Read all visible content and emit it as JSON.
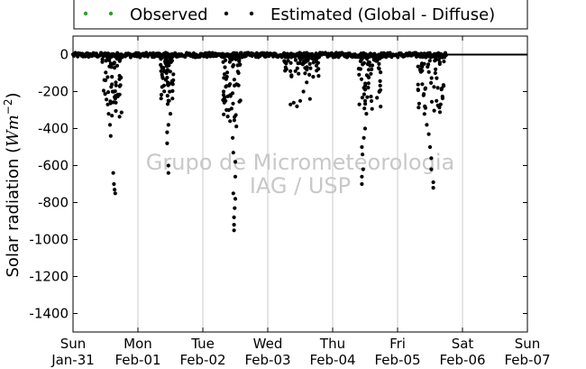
{
  "chart_data": {
    "type": "scatter",
    "ylabel_main": "Solar radiation (",
    "ylabel_italic": "Wm",
    "ylabel_exp": "−2",
    "ylabel_close": ")",
    "ylim": [
      -1500,
      100
    ],
    "yticks": [
      0,
      -200,
      -400,
      -600,
      -800,
      -1000,
      -1200,
      -1400
    ],
    "xlim": [
      0,
      7
    ],
    "xticks": [
      {
        "x": 0,
        "day": "Sun",
        "date": "Jan-31"
      },
      {
        "x": 1,
        "day": "Mon",
        "date": "Feb-01"
      },
      {
        "x": 2,
        "day": "Tue",
        "date": "Feb-02"
      },
      {
        "x": 3,
        "day": "Wed",
        "date": "Feb-03"
      },
      {
        "x": 4,
        "day": "Thu",
        "date": "Feb-04"
      },
      {
        "x": 5,
        "day": "Fri",
        "date": "Feb-05"
      },
      {
        "x": 6,
        "day": "Sat",
        "date": "Feb-06"
      },
      {
        "x": 7,
        "day": "Sun",
        "date": "Feb-07"
      }
    ],
    "grid_x": true,
    "legend_position": "top",
    "watermark": [
      "Grupo de Micrometeorologia",
      "IAG / USP"
    ],
    "series": [
      {
        "name": "Observed",
        "color": "#2ca02c",
        "marker": "dot",
        "points": []
      },
      {
        "name": "Estimated (Global - Diffuse)",
        "color": "#000000",
        "marker": "dot",
        "baseline": {
          "x_start": 0.0,
          "x_end": 5.75,
          "y_range": [
            -15,
            10
          ]
        },
        "day_events": [
          {
            "x_start": 0.45,
            "x_end": 0.75,
            "min": -750,
            "extra": [
              [
                0.62,
                -640
              ],
              [
                0.63,
                -700
              ],
              [
                0.64,
                -730
              ],
              [
                0.65,
                -750
              ],
              [
                0.58,
                -440
              ],
              [
                0.57,
                -380
              ],
              [
                0.61,
                -200
              ],
              [
                0.66,
                -260
              ],
              [
                0.66,
                -150
              ],
              [
                0.6,
                -120
              ],
              [
                0.68,
                -60
              ]
            ]
          },
          {
            "x_start": 1.35,
            "x_end": 1.55,
            "min": -640,
            "extra": [
              [
                1.47,
                -640
              ],
              [
                1.47,
                -600
              ],
              [
                1.45,
                -480
              ],
              [
                1.45,
                -420
              ],
              [
                1.47,
                -380
              ],
              [
                1.46,
                -150
              ],
              [
                1.44,
                -100
              ],
              [
                1.48,
                -250
              ],
              [
                1.5,
                -320
              ],
              [
                1.43,
                -50
              ]
            ]
          },
          {
            "x_start": 2.3,
            "x_end": 2.58,
            "min": -950,
            "extra": [
              [
                2.48,
                -950
              ],
              [
                2.48,
                -920
              ],
              [
                2.48,
                -880
              ],
              [
                2.49,
                -830
              ],
              [
                2.5,
                -780
              ],
              [
                2.47,
                -750
              ],
              [
                2.5,
                -660
              ],
              [
                2.5,
                -580
              ],
              [
                2.47,
                -530
              ],
              [
                2.46,
                -450
              ],
              [
                2.42,
                -360
              ],
              [
                2.4,
                -300
              ],
              [
                2.35,
                -250
              ],
              [
                2.32,
                -200
              ],
              [
                2.52,
                -160
              ],
              [
                2.55,
                -100
              ]
            ]
          },
          {
            "x_start": 3.25,
            "x_end": 3.8,
            "min": -280,
            "extra": [
              [
                3.35,
                -270
              ],
              [
                3.4,
                -260
              ],
              [
                3.45,
                -280
              ],
              [
                3.5,
                -250
              ],
              [
                3.55,
                -200
              ],
              [
                3.6,
                -150
              ],
              [
                3.65,
                -240
              ],
              [
                3.7,
                -120
              ],
              [
                3.75,
                -60
              ]
            ]
          },
          {
            "x_start": 4.4,
            "x_end": 4.75,
            "min": -710,
            "extra": [
              [
                4.45,
                -700
              ],
              [
                4.45,
                -660
              ],
              [
                4.47,
                -620
              ],
              [
                4.46,
                -540
              ],
              [
                4.45,
                -500
              ],
              [
                4.48,
                -450
              ],
              [
                4.5,
                -400
              ],
              [
                4.52,
                -320
              ],
              [
                4.5,
                -250
              ],
              [
                4.48,
                -180
              ],
              [
                4.55,
                -120
              ],
              [
                4.6,
                -80
              ],
              [
                4.65,
                -30
              ]
            ]
          },
          {
            "x_start": 5.3,
            "x_end": 5.72,
            "min": -720,
            "extra": [
              [
                5.55,
                -720
              ],
              [
                5.55,
                -690
              ],
              [
                5.52,
                -620
              ],
              [
                5.52,
                -560
              ],
              [
                5.5,
                -500
              ],
              [
                5.48,
                -430
              ],
              [
                5.45,
                -380
              ],
              [
                5.42,
                -280
              ],
              [
                5.4,
                -220
              ],
              [
                5.38,
                -160
              ],
              [
                5.6,
                -250
              ],
              [
                5.62,
                -180
              ],
              [
                5.58,
                -100
              ],
              [
                5.35,
                -80
              ]
            ]
          }
        ]
      }
    ]
  }
}
